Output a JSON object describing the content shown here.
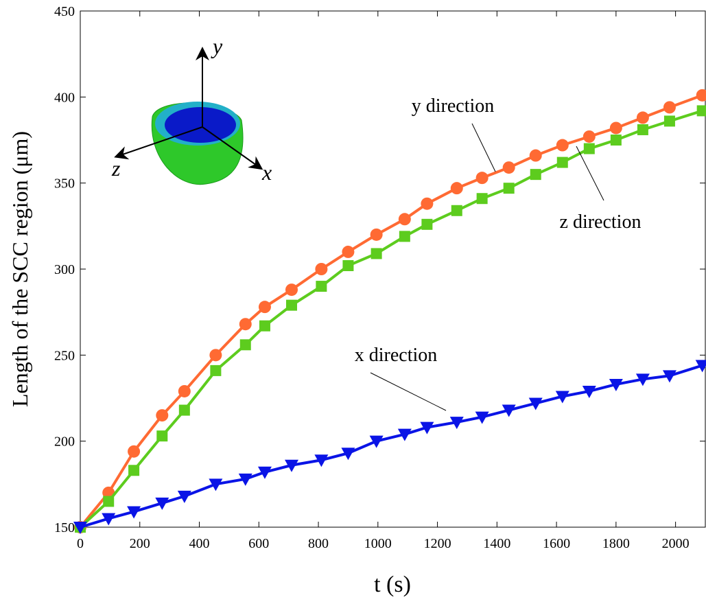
{
  "chart_data": {
    "type": "line",
    "x_label": "t (s)",
    "y_label": "Length of the SCC region (μm)",
    "x": [
      0,
      95,
      180,
      275,
      350,
      455,
      555,
      620,
      710,
      810,
      900,
      995,
      1090,
      1165,
      1265,
      1350,
      1440,
      1530,
      1620,
      1710,
      1800,
      1890,
      1980,
      2090
    ],
    "series": [
      {
        "name": "y direction",
        "color": "#ff6a33",
        "marker": "circle",
        "values": [
          150,
          170,
          194,
          215,
          229,
          250,
          268,
          278,
          288,
          300,
          310,
          320,
          329,
          338,
          347,
          353,
          359,
          366,
          372,
          377,
          382,
          388,
          394,
          401
        ]
      },
      {
        "name": "z direction",
        "color": "#5dcc1e",
        "marker": "square",
        "values": [
          150,
          165,
          183,
          203,
          218,
          241,
          256,
          267,
          279,
          290,
          302,
          309,
          319,
          326,
          334,
          341,
          347,
          355,
          362,
          370,
          375,
          381,
          386,
          392
        ]
      },
      {
        "name": "x direction",
        "color": "#0a14e6",
        "marker": "triangle",
        "values": [
          150,
          155,
          159,
          164,
          168,
          175,
          178,
          182,
          186,
          189,
          193,
          200,
          204,
          208,
          211,
          214,
          218,
          222,
          226,
          229,
          233,
          236,
          238,
          244
        ]
      }
    ],
    "xlim": [
      0,
      2100
    ],
    "ylim": [
      150,
      450
    ],
    "xticks": [
      0,
      200,
      400,
      600,
      800,
      1000,
      1200,
      1400,
      1600,
      1800,
      2000
    ],
    "yticks": [
      150,
      200,
      250,
      300,
      350,
      400,
      450
    ],
    "inset_labels": [
      "y",
      "x",
      "z"
    ]
  }
}
